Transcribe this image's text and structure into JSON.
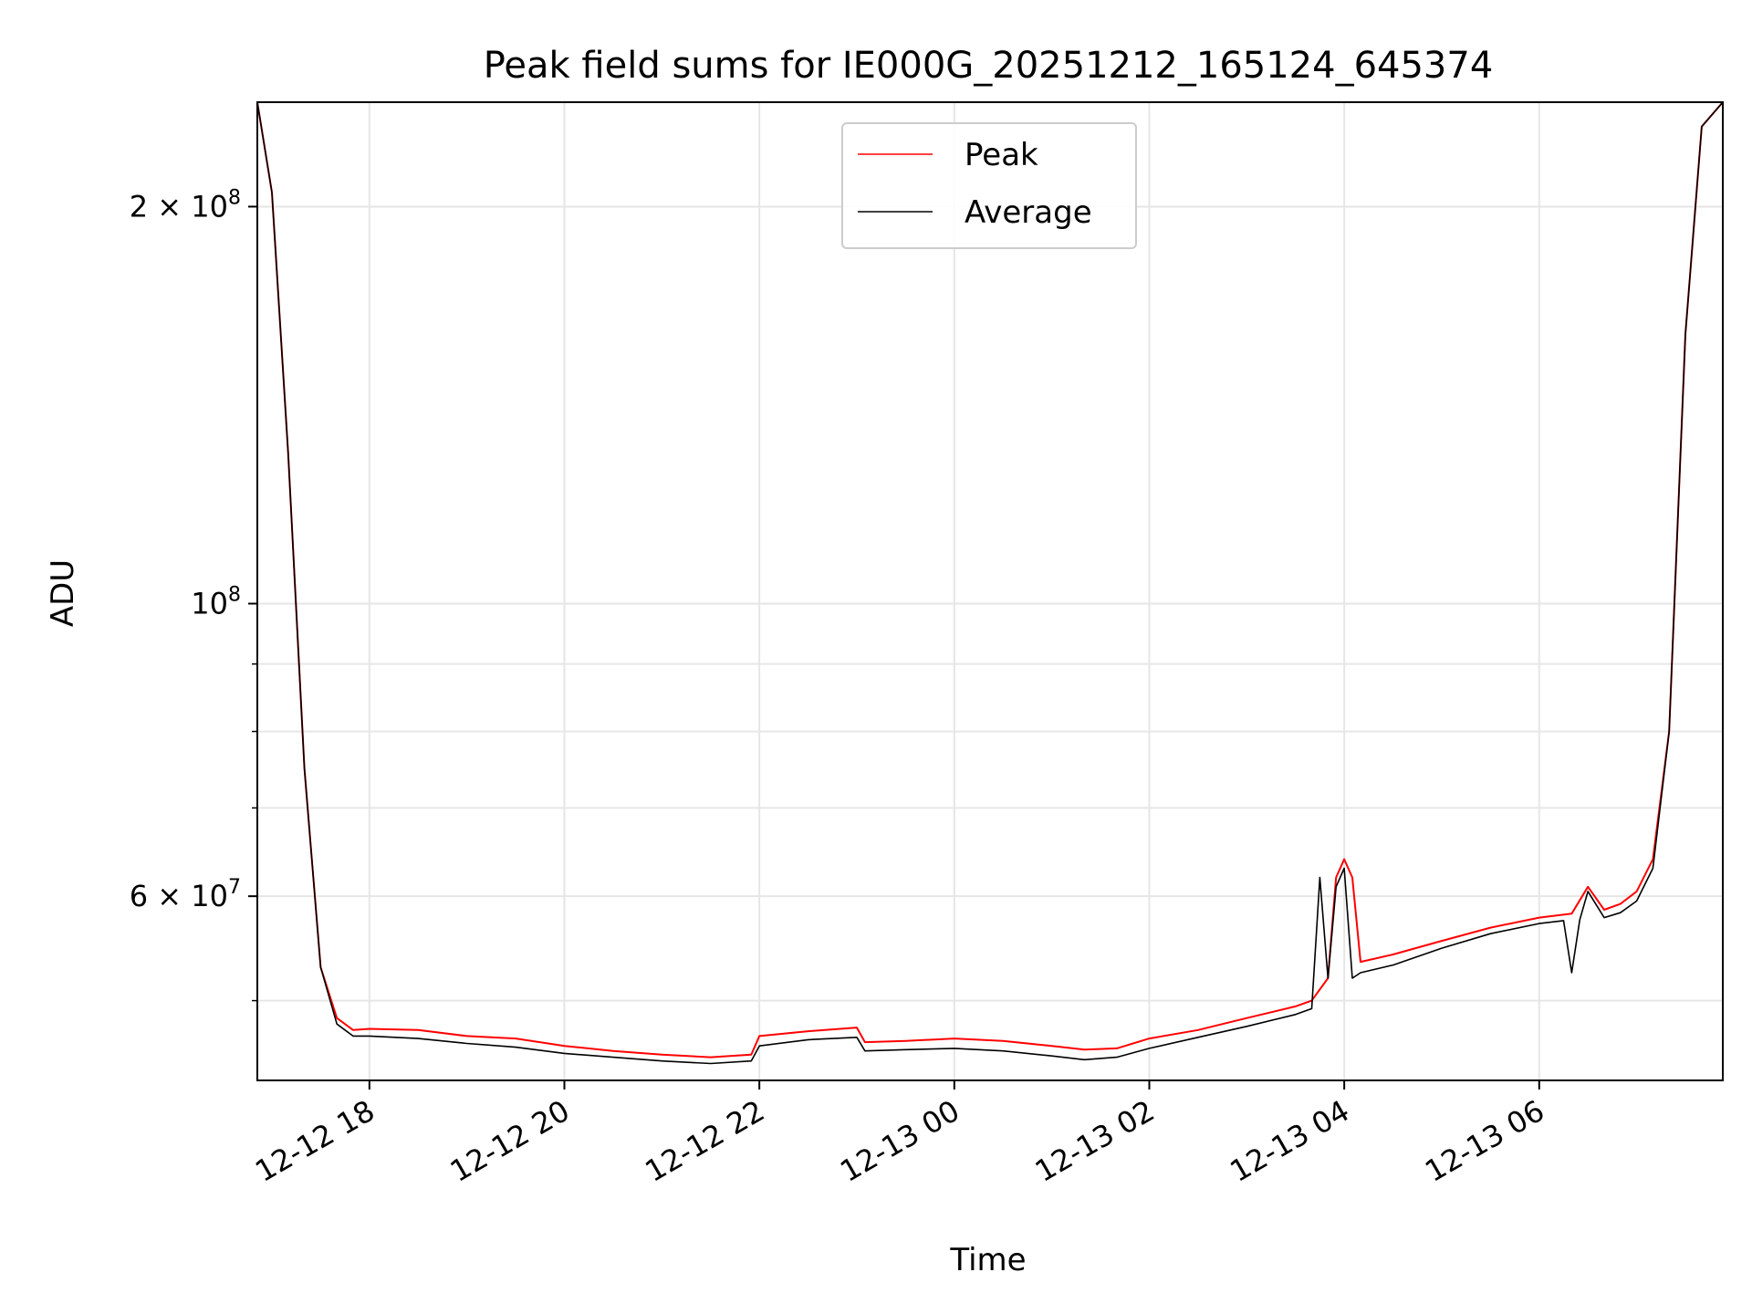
{
  "chart_data": {
    "type": "line",
    "title": "Peak field sums for IE000G_20251212_165124_645374",
    "xlabel": "Time",
    "ylabel": "ADU",
    "y_scale": "log",
    "ylim": [
      43500000,
      240000000
    ],
    "xlim": [
      "2025-12-12 16:51",
      "2025-12-13 07:53"
    ],
    "grid": true,
    "legend_position": "top-center",
    "x_tick_labels": [
      "12-12 18",
      "12-12 20",
      "12-12 22",
      "12-13 00",
      "12-13 02",
      "12-13 04",
      "12-13 06"
    ],
    "x_ticks": [
      "2025-12-12 18:00",
      "2025-12-12 20:00",
      "2025-12-12 22:00",
      "2025-12-13 00:00",
      "2025-12-13 02:00",
      "2025-12-13 04:00",
      "2025-12-13 06:00"
    ],
    "y_major_ticks": [
      {
        "value": 60000000,
        "mantissa": "6",
        "exponent": "7"
      },
      {
        "value": 100000000,
        "mantissa": "",
        "exponent": "8"
      },
      {
        "value": 200000000,
        "mantissa": "2",
        "exponent": "8"
      }
    ],
    "y_minor_ticks": [
      50000000,
      70000000,
      80000000,
      90000000
    ],
    "series": [
      {
        "name": "Peak",
        "color": "#ff0000",
        "x": [
          "2025-12-12 16:51",
          "2025-12-12 17:00",
          "2025-12-12 17:10",
          "2025-12-12 17:20",
          "2025-12-12 17:30",
          "2025-12-12 17:40",
          "2025-12-12 17:50",
          "2025-12-12 18:00",
          "2025-12-12 18:30",
          "2025-12-12 19:00",
          "2025-12-12 19:30",
          "2025-12-12 20:00",
          "2025-12-12 20:30",
          "2025-12-12 21:00",
          "2025-12-12 21:30",
          "2025-12-12 21:55",
          "2025-12-12 22:00",
          "2025-12-12 22:30",
          "2025-12-12 23:00",
          "2025-12-12 23:05",
          "2025-12-12 23:30",
          "2025-12-13 00:00",
          "2025-12-13 00:30",
          "2025-12-13 01:00",
          "2025-12-13 01:20",
          "2025-12-13 01:40",
          "2025-12-13 02:00",
          "2025-12-13 02:30",
          "2025-12-13 03:00",
          "2025-12-13 03:30",
          "2025-12-13 03:40",
          "2025-12-13 03:50",
          "2025-12-13 03:55",
          "2025-12-13 04:00",
          "2025-12-13 04:05",
          "2025-12-13 04:10",
          "2025-12-13 04:30",
          "2025-12-13 05:00",
          "2025-12-13 05:30",
          "2025-12-13 06:00",
          "2025-12-13 06:20",
          "2025-12-13 06:30",
          "2025-12-13 06:40",
          "2025-12-13 06:50",
          "2025-12-13 07:00",
          "2025-12-13 07:10",
          "2025-12-13 07:20",
          "2025-12-13 07:30",
          "2025-12-13 07:40",
          "2025-12-13 07:53"
        ],
        "y": [
          240000000,
          205000000,
          130000000,
          75000000,
          53000000,
          48500000,
          47500000,
          47600000,
          47500000,
          47000000,
          46800000,
          46200000,
          45800000,
          45500000,
          45300000,
          45500000,
          47000000,
          47400000,
          47700000,
          46500000,
          46600000,
          46800000,
          46600000,
          46200000,
          45900000,
          46000000,
          46800000,
          47500000,
          48500000,
          49500000,
          50000000,
          52000000,
          62000000,
          64000000,
          62000000,
          53500000,
          54200000,
          55500000,
          56800000,
          57800000,
          58200000,
          61000000,
          58600000,
          59200000,
          60500000,
          64000000,
          80000000,
          160000000,
          230000000,
          240000000
        ]
      },
      {
        "name": "Average",
        "color": "#000000",
        "x": [
          "2025-12-12 16:51",
          "2025-12-12 17:00",
          "2025-12-12 17:10",
          "2025-12-12 17:20",
          "2025-12-12 17:30",
          "2025-12-12 17:40",
          "2025-12-12 17:50",
          "2025-12-12 18:00",
          "2025-12-12 18:30",
          "2025-12-12 19:00",
          "2025-12-12 19:30",
          "2025-12-12 20:00",
          "2025-12-12 20:30",
          "2025-12-12 21:00",
          "2025-12-12 21:30",
          "2025-12-12 21:55",
          "2025-12-12 22:00",
          "2025-12-12 22:30",
          "2025-12-12 23:00",
          "2025-12-12 23:05",
          "2025-12-12 23:30",
          "2025-12-13 00:00",
          "2025-12-13 00:30",
          "2025-12-13 01:00",
          "2025-12-13 01:20",
          "2025-12-13 01:40",
          "2025-12-13 02:00",
          "2025-12-13 02:30",
          "2025-12-13 03:00",
          "2025-12-13 03:30",
          "2025-12-13 03:40",
          "2025-12-13 03:45",
          "2025-12-13 03:50",
          "2025-12-13 03:55",
          "2025-12-13 04:00",
          "2025-12-13 04:05",
          "2025-12-13 04:10",
          "2025-12-13 04:30",
          "2025-12-13 05:00",
          "2025-12-13 05:30",
          "2025-12-13 06:00",
          "2025-12-13 06:15",
          "2025-12-13 06:20",
          "2025-12-13 06:25",
          "2025-12-13 06:30",
          "2025-12-13 06:40",
          "2025-12-13 06:50",
          "2025-12-13 07:00",
          "2025-12-13 07:10",
          "2025-12-13 07:20",
          "2025-12-13 07:30",
          "2025-12-13 07:40",
          "2025-12-13 07:53"
        ],
        "y": [
          240000000,
          205000000,
          130000000,
          75000000,
          53000000,
          48000000,
          47000000,
          47000000,
          46800000,
          46400000,
          46100000,
          45600000,
          45300000,
          45000000,
          44800000,
          45000000,
          46200000,
          46700000,
          46900000,
          45800000,
          45900000,
          46000000,
          45800000,
          45400000,
          45100000,
          45300000,
          46000000,
          46900000,
          47800000,
          48800000,
          49300000,
          62000000,
          52000000,
          61000000,
          63000000,
          52000000,
          52500000,
          53200000,
          54800000,
          56200000,
          57200000,
          57500000,
          52500000,
          57600000,
          60500000,
          57800000,
          58300000,
          59500000,
          63000000,
          80000000,
          160000000,
          230000000,
          240000000
        ]
      }
    ]
  }
}
